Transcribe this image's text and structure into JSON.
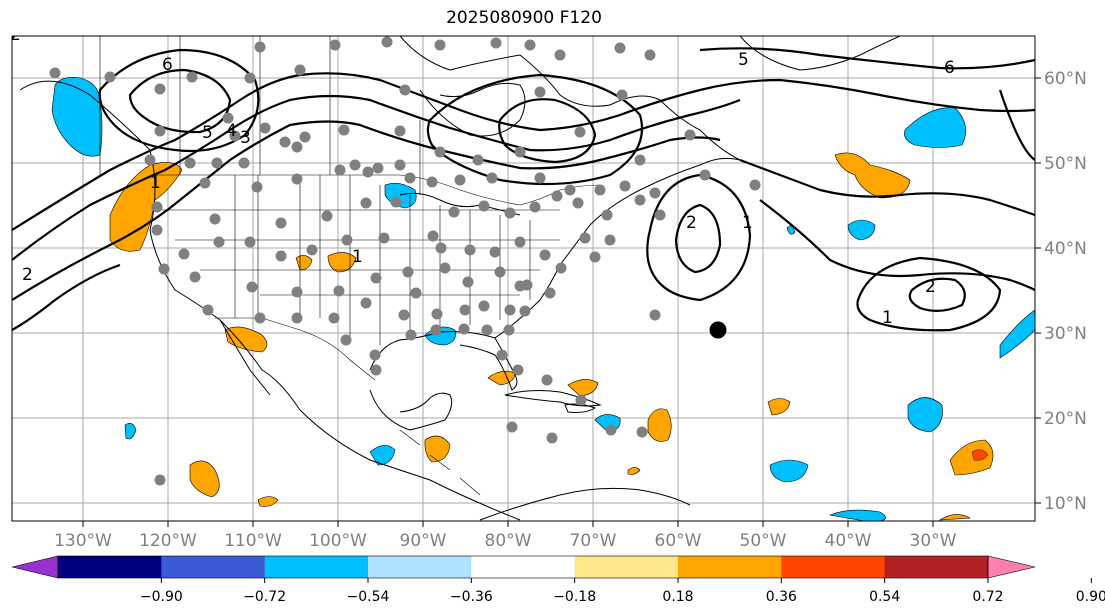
{
  "title": "2025080900 F120",
  "lon_labels": [
    "130°W",
    "120°W",
    "110°W",
    "100°W",
    "90°W",
    "80°W",
    "70°W",
    "60°W",
    "50°W",
    "40°W",
    "30°W"
  ],
  "lat_labels": [
    "60°N",
    "50°N",
    "40°N",
    "30°N",
    "20°N",
    "10°N"
  ],
  "contour_labels": [
    "6",
    "5",
    "4",
    "3",
    "2",
    "1",
    "5",
    "6",
    "2",
    "1",
    "1",
    "2",
    "1",
    "2"
  ],
  "colorbar": {
    "tick_labels": [
      "−0.90",
      "−0.72",
      "−0.54",
      "−0.36",
      "−0.18",
      "0.18",
      "0.36",
      "0.54",
      "0.72",
      "0.90"
    ],
    "colors": [
      "#9b30d0",
      "#000080",
      "#3a5bd2",
      "#00bfff",
      "#aee2ff",
      "#ffffff",
      "#ffe68a",
      "#ffa500",
      "#ff4500",
      "#b22222",
      "#ff80b0"
    ]
  },
  "colors": {
    "state_lines": "#000000",
    "grid": "#aaaaaa",
    "stations": "#808080",
    "marker": "#000000",
    "axis_labels": "#808080"
  }
}
